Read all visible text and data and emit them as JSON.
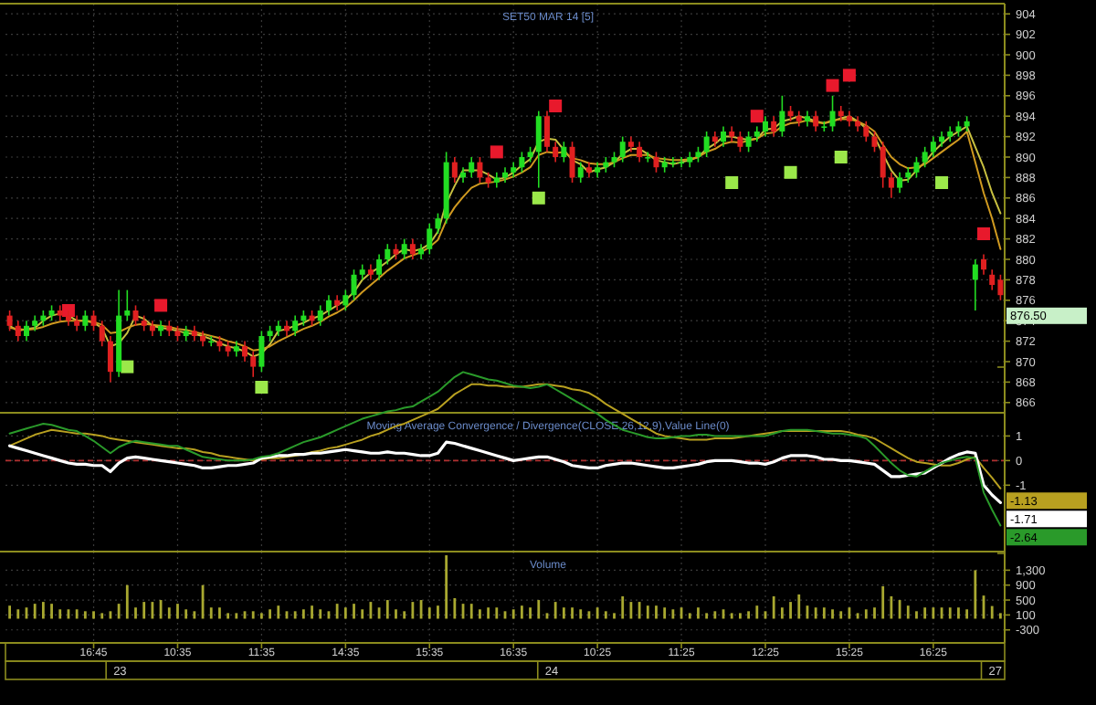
{
  "chart_data": [
    {
      "type": "candlestick",
      "title": "SET50 MAR 14  [5]",
      "ohlc": [
        [
          874.5,
          875,
          873,
          873.5
        ],
        [
          873.5,
          874,
          872,
          872.5
        ],
        [
          872.5,
          874,
          872,
          873.5
        ],
        [
          873.5,
          874.5,
          873,
          874
        ],
        [
          874,
          875,
          873.5,
          874.5
        ],
        [
          874.5,
          875.5,
          874,
          875
        ],
        [
          875,
          875.5,
          874,
          874.5
        ],
        [
          874.5,
          875,
          873.5,
          874
        ],
        [
          874,
          874.5,
          873,
          873.5
        ],
        [
          873.5,
          875,
          873,
          874.5
        ],
        [
          874.5,
          875,
          873,
          873.5
        ],
        [
          873.5,
          874,
          871.5,
          872
        ],
        [
          872,
          872.5,
          868,
          869
        ],
        [
          869,
          877,
          868.5,
          874.5
        ],
        [
          874.5,
          877,
          874,
          875
        ],
        [
          875,
          875.5,
          873.5,
          874
        ],
        [
          874,
          874.5,
          873,
          873.5
        ],
        [
          873.5,
          874,
          872.5,
          873
        ],
        [
          873,
          874,
          872.5,
          873.5
        ],
        [
          873.5,
          874,
          872.5,
          873
        ],
        [
          873,
          873.5,
          872,
          872.5
        ],
        [
          872.5,
          873.5,
          872,
          873
        ],
        [
          873,
          873.5,
          872,
          872.5
        ],
        [
          872.5,
          873,
          871.5,
          872
        ],
        [
          872,
          872.5,
          871.5,
          872
        ],
        [
          872,
          872.5,
          871,
          871.5
        ],
        [
          871.5,
          872,
          870.5,
          871
        ],
        [
          871,
          872,
          870.5,
          871.5
        ],
        [
          871.5,
          872,
          870,
          870.5
        ],
        [
          870.5,
          871,
          868.5,
          869.5
        ],
        [
          869.5,
          873,
          869,
          872.5
        ],
        [
          872.5,
          873.5,
          872,
          873
        ],
        [
          873,
          874,
          872.5,
          873.5
        ],
        [
          873.5,
          874,
          872.5,
          873
        ],
        [
          873,
          874.5,
          872.5,
          874
        ],
        [
          874,
          875,
          873.5,
          874.5
        ],
        [
          874.5,
          875,
          873.5,
          874
        ],
        [
          874,
          875.5,
          873.5,
          875
        ],
        [
          875,
          876.5,
          874.5,
          876
        ],
        [
          876,
          876.5,
          875,
          875.5
        ],
        [
          875.5,
          877,
          875,
          876.5
        ],
        [
          876.5,
          879,
          876,
          878.5
        ],
        [
          878.5,
          879.5,
          878,
          879
        ],
        [
          879,
          879.5,
          878,
          878.5
        ],
        [
          878.5,
          880.5,
          878,
          880
        ],
        [
          880,
          881.5,
          879.5,
          881
        ],
        [
          881,
          881.5,
          880,
          880.5
        ],
        [
          880.5,
          882,
          880,
          881.5
        ],
        [
          881.5,
          882,
          880,
          880.5
        ],
        [
          880.5,
          881.5,
          880,
          881
        ],
        [
          881,
          883.5,
          880.5,
          883
        ],
        [
          883,
          884.5,
          882.5,
          884
        ],
        [
          884,
          890.5,
          883.5,
          889.5
        ],
        [
          889.5,
          890,
          887.5,
          888
        ],
        [
          888,
          889,
          887.5,
          888.5
        ],
        [
          888.5,
          890,
          888,
          889.5
        ],
        [
          889.5,
          890,
          887.5,
          888
        ],
        [
          888,
          888.5,
          887,
          887.5
        ],
        [
          887.5,
          888.5,
          887,
          888
        ],
        [
          888,
          889,
          887.5,
          888.5
        ],
        [
          888.5,
          889.5,
          888,
          889
        ],
        [
          889,
          890.5,
          888.5,
          890
        ],
        [
          890,
          891,
          889.5,
          890.5
        ],
        [
          890.5,
          894.5,
          887,
          894
        ],
        [
          894,
          894.5,
          890.5,
          891
        ],
        [
          891,
          891.5,
          889.5,
          890
        ],
        [
          890,
          891.5,
          889.5,
          891
        ],
        [
          891,
          891.5,
          887.5,
          888
        ],
        [
          888,
          889.5,
          887.5,
          889
        ],
        [
          889,
          889.5,
          888,
          888.5
        ],
        [
          888.5,
          889.5,
          888,
          889
        ],
        [
          889,
          890,
          888.5,
          889.5
        ],
        [
          889.5,
          890.5,
          889,
          890
        ],
        [
          890,
          892,
          889.5,
          891.5
        ],
        [
          891.5,
          892,
          890.5,
          891
        ],
        [
          891,
          891.5,
          889.5,
          890
        ],
        [
          890,
          890.5,
          889.5,
          890
        ],
        [
          890,
          890.5,
          888.5,
          889
        ],
        [
          889,
          890,
          888.5,
          889.5
        ],
        [
          889.5,
          890,
          889,
          889.5
        ],
        [
          889.5,
          890,
          889,
          889.5
        ],
        [
          889.5,
          890.5,
          889,
          890
        ],
        [
          890,
          891,
          889.5,
          890.5
        ],
        [
          890.5,
          892.5,
          890,
          892
        ],
        [
          892,
          892.5,
          891,
          891.5
        ],
        [
          891.5,
          893,
          891,
          892.5
        ],
        [
          892.5,
          893,
          891.5,
          892
        ],
        [
          892,
          892.5,
          890.5,
          891
        ],
        [
          891,
          892.5,
          890.5,
          892
        ],
        [
          892,
          893,
          891.5,
          892.5
        ],
        [
          892.5,
          894,
          892,
          893.5
        ],
        [
          893.5,
          894,
          892,
          892.5
        ],
        [
          892.5,
          896,
          892,
          894.5
        ],
        [
          894.5,
          895,
          893.5,
          894
        ],
        [
          894,
          894.5,
          893,
          893.5
        ],
        [
          893.5,
          894.5,
          893,
          894
        ],
        [
          894,
          894.5,
          892.5,
          893
        ],
        [
          893,
          893.5,
          892.5,
          893
        ],
        [
          893,
          896,
          892.5,
          894.5
        ],
        [
          894.5,
          895,
          893.5,
          894
        ],
        [
          894,
          894.5,
          893,
          893.5
        ],
        [
          893.5,
          894,
          892.5,
          893
        ],
        [
          893,
          893.5,
          891.5,
          892
        ],
        [
          892,
          892.5,
          890.5,
          891
        ],
        [
          891,
          891.5,
          887,
          888
        ],
        [
          888,
          888.5,
          886,
          887
        ],
        [
          887,
          888.5,
          886.5,
          888
        ],
        [
          888,
          889,
          887.5,
          888.5
        ],
        [
          888.5,
          890,
          888,
          889.5
        ],
        [
          889.5,
          891,
          889,
          890.5
        ],
        [
          890.5,
          892,
          890,
          891.5
        ],
        [
          891.5,
          892.5,
          891,
          892
        ],
        [
          892,
          893,
          891.5,
          892.5
        ],
        [
          892.5,
          893.5,
          892,
          893
        ],
        [
          893,
          894,
          892.5,
          893.5
        ],
        [
          878,
          880,
          875,
          879.5
        ],
        [
          880,
          880.5,
          878.5,
          879
        ],
        [
          878.5,
          879,
          877,
          877.5
        ],
        [
          878,
          878.5,
          876,
          876.5
        ]
      ],
      "series": [
        {
          "type": "line",
          "color": "#c8c040",
          "values": [
            873.5,
            873,
            873.2,
            873.3,
            874,
            874.5,
            874.7,
            874.5,
            874,
            874,
            873.8,
            873.3,
            871.5,
            871.8,
            872.8,
            874.5,
            874.2,
            873.5,
            873.3,
            873.2,
            873,
            872.8,
            872.7,
            872.5,
            872.2,
            871.8,
            871.5,
            871.3,
            871,
            870.5,
            870.8,
            871.7,
            873,
            873.2,
            873.5,
            873.8,
            874.2,
            874.5,
            875,
            875.5,
            876,
            876.8,
            878,
            878.7,
            879.2,
            879.8,
            880.5,
            881,
            880.8,
            881,
            881.5,
            882.7,
            885.5,
            887.2,
            888.7,
            888.7,
            888.7,
            888.3,
            887.8,
            888,
            888.5,
            889.2,
            889.8,
            891.5,
            891.8,
            891.7,
            890.7,
            889.7,
            889.3,
            888.5,
            888.8,
            889,
            889.5,
            890.3,
            890.8,
            890.8,
            890.3,
            889.7,
            889.5,
            889.3,
            889.5,
            889.7,
            890,
            890.8,
            891.3,
            892,
            892,
            891.8,
            891.7,
            891.8,
            892.7,
            892.8,
            893.5,
            893.7,
            894,
            893.8,
            893.5,
            893.3,
            893.5,
            893.8,
            894,
            893.5,
            892.8,
            892,
            890.3,
            888.7,
            887.7,
            887.8,
            888.7,
            889.5,
            890.5,
            891.3,
            892,
            892.5,
            893,
            891,
            889,
            886.5,
            884.5
          ]
        },
        {
          "type": "line",
          "color": "#d09a20",
          "values": [
            873.3,
            873.2,
            873.1,
            873.2,
            873.4,
            873.7,
            873.9,
            874,
            874,
            874,
            873.9,
            873.6,
            872.8,
            872.9,
            873.3,
            873.6,
            873.7,
            873.6,
            873.5,
            873.4,
            873.2,
            873.1,
            872.9,
            872.7,
            872.5,
            872.3,
            872,
            871.8,
            871.5,
            871.1,
            871.2,
            871.5,
            872,
            872.4,
            872.8,
            873.2,
            873.5,
            873.9,
            874.4,
            874.8,
            875.3,
            876,
            876.8,
            877.5,
            878.2,
            878.9,
            879.5,
            880.1,
            880.4,
            880.7,
            881.2,
            881.9,
            883.8,
            885.1,
            886.1,
            887,
            887.4,
            887.5,
            887.6,
            887.8,
            888.1,
            888.5,
            889,
            890.2,
            890.5,
            890.4,
            890.5,
            889.9,
            889.7,
            889.4,
            889.3,
            889.3,
            889.5,
            889.9,
            890.2,
            890.2,
            890.2,
            889.9,
            889.8,
            889.7,
            889.7,
            889.8,
            890,
            890.5,
            890.8,
            891.3,
            891.5,
            891.4,
            891.6,
            891.8,
            892.3,
            892.4,
            893,
            893.3,
            893.4,
            893.6,
            893.4,
            893.3,
            893.6,
            893.7,
            893.7,
            893.5,
            893.1,
            892.5,
            891.2,
            890,
            889.3,
            888.9,
            889,
            889.3,
            889.9,
            890.5,
            891.1,
            891.7,
            892.5,
            889.5,
            886.5,
            884,
            881
          ]
        },
        {
          "type": "scatter",
          "marker": "square",
          "color": "#e8192c",
          "values": [
            null,
            null,
            null,
            null,
            null,
            null,
            null,
            875,
            null,
            null,
            null,
            null,
            null,
            null,
            null,
            null,
            null,
            null,
            875.5,
            null,
            null,
            null,
            null,
            null,
            null,
            null,
            null,
            null,
            null,
            null,
            null,
            null,
            null,
            null,
            null,
            null,
            null,
            null,
            null,
            null,
            null,
            null,
            null,
            null,
            null,
            null,
            null,
            null,
            null,
            null,
            null,
            null,
            null,
            null,
            null,
            null,
            null,
            null,
            890.5,
            null,
            null,
            null,
            null,
            null,
            null,
            895,
            null,
            null,
            null,
            null,
            null,
            null,
            null,
            null,
            null,
            null,
            null,
            null,
            null,
            null,
            null,
            null,
            null,
            null,
            null,
            null,
            null,
            null,
            null,
            894,
            null,
            null,
            null,
            null,
            null,
            null,
            null,
            null,
            897,
            null,
            898,
            null,
            null,
            null,
            null,
            null,
            null,
            null,
            null,
            null,
            null,
            null,
            null,
            null,
            null,
            null,
            882.5,
            null,
            null
          ]
        },
        {
          "type": "scatter",
          "marker": "square",
          "color": "#9be84a",
          "values": [
            null,
            null,
            null,
            null,
            null,
            null,
            null,
            null,
            null,
            null,
            null,
            null,
            null,
            null,
            869.5,
            null,
            null,
            null,
            null,
            null,
            null,
            null,
            null,
            null,
            null,
            null,
            null,
            null,
            null,
            null,
            867.5,
            null,
            null,
            null,
            null,
            null,
            null,
            null,
            null,
            null,
            null,
            null,
            null,
            null,
            null,
            null,
            null,
            null,
            null,
            null,
            null,
            null,
            null,
            null,
            null,
            null,
            null,
            null,
            null,
            null,
            null,
            null,
            null,
            886,
            null,
            null,
            null,
            null,
            null,
            null,
            null,
            null,
            null,
            null,
            null,
            null,
            null,
            null,
            null,
            null,
            null,
            null,
            null,
            null,
            null,
            null,
            887.5,
            null,
            null,
            null,
            null,
            null,
            null,
            888.5,
            null,
            null,
            null,
            null,
            null,
            890,
            null,
            null,
            null,
            null,
            null,
            null,
            null,
            null,
            null,
            null,
            null,
            887.5,
            null,
            null,
            null,
            null,
            null,
            null,
            null
          ]
        }
      ],
      "ylim": [
        865,
        905
      ],
      "yticks": [
        866,
        868,
        870,
        872,
        874,
        876,
        878,
        880,
        882,
        884,
        886,
        888,
        890,
        892,
        894,
        896,
        898,
        900,
        902,
        904
      ],
      "grid": true,
      "tick_labels": "y",
      "annotations": [
        "876.50"
      ]
    },
    {
      "type": "line",
      "title": "Moving Average Convergence / Divergence(CLOSE,26,12,9),Value Line(0)",
      "series": [
        {
          "color": "#b8a020",
          "values": [
            0.6,
            0.75,
            0.9,
            1.05,
            1.15,
            1.25,
            1.2,
            1.15,
            1.1,
            1.1,
            1.05,
            1.0,
            0.9,
            0.85,
            0.8,
            0.75,
            0.7,
            0.65,
            0.6,
            0.55,
            0.5,
            0.5,
            0.45,
            0.35,
            0.3,
            0.2,
            0.15,
            0.1,
            0.05,
            0,
            0.05,
            0.1,
            0.1,
            0.15,
            0.2,
            0.25,
            0.35,
            0.4,
            0.5,
            0.55,
            0.65,
            0.75,
            0.85,
            1.0,
            1.1,
            1.25,
            1.4,
            1.5,
            1.65,
            1.8,
            1.95,
            2.1,
            2.4,
            2.7,
            2.9,
            3.1,
            3.1,
            3.05,
            3.05,
            3.0,
            3.0,
            3.0,
            3.05,
            3.1,
            3.1,
            3.05,
            3.0,
            2.9,
            2.85,
            2.75,
            2.55,
            2.3,
            2.1,
            1.9,
            1.7,
            1.5,
            1.3,
            1.1,
            1.0,
            0.95,
            0.9,
            0.85,
            0.85,
            0.85,
            0.9,
            0.9,
            0.9,
            0.95,
            1.0,
            1.05,
            1.1,
            1.15,
            1.2,
            1.2,
            1.2,
            1.2,
            1.2,
            1.2,
            1.2,
            1.2,
            1.15,
            1.05,
            1.0,
            0.9,
            0.7,
            0.5,
            0.3,
            0.1,
            -0.05,
            -0.1,
            -0.15,
            -0.2,
            -0.2,
            -0.1,
            0.05,
            0.15,
            -0.3,
            -0.7,
            -1.13
          ]
        },
        {
          "color": "#ffffff",
          "values": [
            0.6,
            0.5,
            0.4,
            0.3,
            0.2,
            0.1,
            0,
            -0.1,
            -0.15,
            -0.15,
            -0.2,
            -0.2,
            -0.45,
            -0.1,
            0.1,
            0.15,
            0.1,
            0.05,
            0,
            -0.05,
            -0.1,
            -0.15,
            -0.2,
            -0.3,
            -0.3,
            -0.25,
            -0.2,
            -0.2,
            -0.15,
            -0.1,
            0.1,
            0.15,
            0.2,
            0.2,
            0.25,
            0.25,
            0.3,
            0.3,
            0.35,
            0.4,
            0.45,
            0.4,
            0.35,
            0.3,
            0.3,
            0.35,
            0.3,
            0.3,
            0.25,
            0.2,
            0.2,
            0.3,
            0.75,
            0.7,
            0.6,
            0.5,
            0.4,
            0.3,
            0.2,
            0.1,
            0,
            0.05,
            0.1,
            0.15,
            0.15,
            0.05,
            -0.05,
            -0.2,
            -0.25,
            -0.3,
            -0.3,
            -0.2,
            -0.15,
            -0.1,
            -0.1,
            -0.15,
            -0.2,
            -0.25,
            -0.3,
            -0.3,
            -0.25,
            -0.2,
            -0.15,
            -0.05,
            0,
            0,
            0,
            -0.05,
            -0.1,
            -0.1,
            -0.15,
            -0.05,
            0.1,
            0.2,
            0.2,
            0.2,
            0.15,
            0.05,
            0.05,
            0,
            0,
            -0.05,
            -0.1,
            -0.15,
            -0.4,
            -0.65,
            -0.65,
            -0.6,
            -0.55,
            -0.5,
            -0.3,
            -0.1,
            0.1,
            0.25,
            0.35,
            0.3,
            -1,
            -1.4,
            -1.71
          ]
        },
        {
          "color": "#2a9a2a",
          "values": [
            1.1,
            1.2,
            1.3,
            1.4,
            1.5,
            1.45,
            1.35,
            1.25,
            1.2,
            1.0,
            0.8,
            0.55,
            0.3,
            0.55,
            0.7,
            0.8,
            0.75,
            0.7,
            0.65,
            0.6,
            0.6,
            0.45,
            0.3,
            0.15,
            0.1,
            0.05,
            0,
            0,
            0,
            0.05,
            0.15,
            0.2,
            0.3,
            0.45,
            0.6,
            0.75,
            0.85,
            0.95,
            1.1,
            1.25,
            1.4,
            1.55,
            1.7,
            1.8,
            1.9,
            2.0,
            2.05,
            2.15,
            2.2,
            2.4,
            2.6,
            2.8,
            3.1,
            3.4,
            3.6,
            3.5,
            3.4,
            3.3,
            3.25,
            3.15,
            3.05,
            3.0,
            2.95,
            3.0,
            3.1,
            2.9,
            2.7,
            2.5,
            2.3,
            2.1,
            1.9,
            1.65,
            1.45,
            1.25,
            1.15,
            1.05,
            0.95,
            0.9,
            0.9,
            0.95,
            1.0,
            1.0,
            1.05,
            1.05,
            1.0,
            1.0,
            1.0,
            1.0,
            1.0,
            1.0,
            1.0,
            1.1,
            1.2,
            1.25,
            1.25,
            1.25,
            1.2,
            1.15,
            1.1,
            1.1,
            1.05,
            1.0,
            0.9,
            0.6,
            0.25,
            -0.1,
            -0.4,
            -0.6,
            -0.65,
            -0.45,
            -0.25,
            -0.1,
            0,
            0.1,
            0.15,
            0.1,
            -1.3,
            -2.0,
            -2.64
          ]
        }
      ],
      "ylim": [
        -3.7,
        3.8
      ],
      "yticks": [
        1,
        0,
        -1
      ],
      "grid": true,
      "tick_labels": "y",
      "ref_lines": [
        {
          "axis": "y",
          "value": 0,
          "color": "#b03030",
          "line_style": "dashed"
        }
      ],
      "annotations": [
        "-1.13",
        "-1.71",
        "-2.64"
      ]
    },
    {
      "type": "bar",
      "title": "Volume",
      "color": "#a8a830",
      "categories": [
        null,
        null,
        null,
        null,
        null,
        null,
        null,
        null,
        null,
        null,
        "16:45",
        null,
        null,
        null,
        null,
        null,
        null,
        null,
        null,
        null,
        "10:35",
        null,
        null,
        null,
        null,
        null,
        null,
        null,
        null,
        null,
        "11:35",
        null,
        null,
        null,
        null,
        null,
        null,
        null,
        null,
        null,
        "14:35",
        null,
        null,
        null,
        null,
        null,
        null,
        null,
        null,
        null,
        "15:35",
        null,
        null,
        null,
        null,
        null,
        null,
        null,
        null,
        null,
        "16:35",
        null,
        null,
        null,
        null,
        null,
        null,
        null,
        null,
        null,
        "10:25",
        null,
        null,
        null,
        null,
        null,
        null,
        null,
        null,
        null,
        "11:25",
        null,
        null,
        null,
        null,
        null,
        null,
        null,
        null,
        null,
        "12:25",
        null,
        null,
        null,
        null,
        null,
        null,
        null,
        null,
        null,
        "15:25",
        null,
        null,
        null,
        null,
        null,
        null,
        null,
        null,
        null,
        "16:25",
        null,
        null,
        null,
        null,
        null,
        null,
        null,
        null
      ],
      "values": [
        350,
        250,
        300,
        400,
        450,
        400,
        250,
        250,
        250,
        200,
        200,
        150,
        200,
        400,
        900,
        300,
        450,
        450,
        500,
        300,
        400,
        250,
        200,
        900,
        300,
        300,
        150,
        150,
        200,
        200,
        150,
        250,
        350,
        200,
        200,
        250,
        350,
        250,
        200,
        400,
        300,
        400,
        250,
        450,
        300,
        500,
        250,
        200,
        450,
        500,
        300,
        350,
        1700,
        550,
        400,
        400,
        250,
        300,
        300,
        200,
        250,
        350,
        300,
        500,
        150,
        450,
        300,
        300,
        250,
        200,
        300,
        200,
        150,
        600,
        450,
        450,
        350,
        350,
        300,
        250,
        300,
        150,
        300,
        150,
        200,
        250,
        150,
        150,
        200,
        350,
        200,
        600,
        300,
        450,
        650,
        350,
        300,
        300,
        250,
        200,
        300,
        150,
        250,
        300,
        870,
        600,
        500,
        350,
        200,
        300,
        300,
        300,
        300,
        300,
        250,
        1300,
        620,
        340,
        150
      ],
      "ylim": [
        -600,
        1750
      ],
      "yticks": [
        {
          "value": 1300,
          "label": "1,300"
        },
        900,
        500,
        100,
        -300
      ],
      "grid": true,
      "annotations": [
        "23",
        "24",
        "27"
      ]
    }
  ]
}
